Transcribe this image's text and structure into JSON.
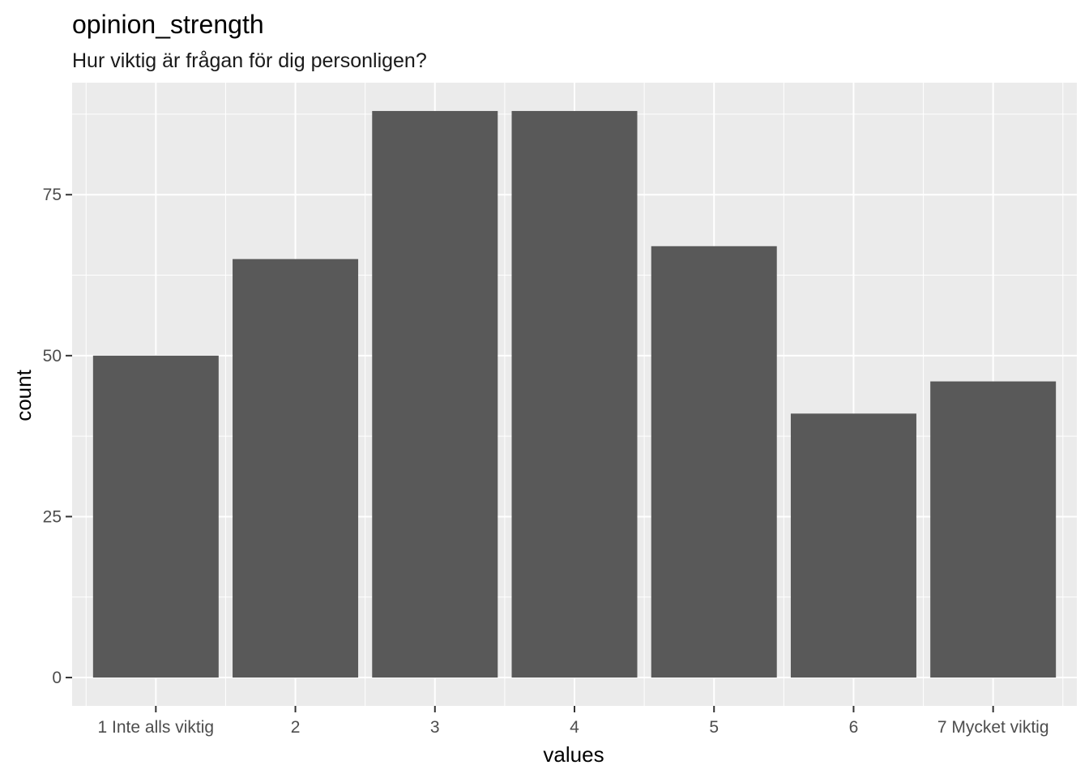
{
  "chart_data": {
    "type": "bar",
    "title": "opinion_strength",
    "subtitle": "Hur viktig är frågan för dig personligen?",
    "xlabel": "values",
    "ylabel": "count",
    "categories": [
      "1 Inte alls viktig",
      "2",
      "3",
      "4",
      "5",
      "6",
      "7 Mycket viktig"
    ],
    "values": [
      50,
      65,
      88,
      88,
      67,
      41,
      46
    ],
    "y_ticks": [
      0,
      25,
      50,
      75
    ],
    "y_tick_labels": [
      "0",
      "25",
      "50",
      "75"
    ],
    "ylim": [
      -4.4,
      92.4
    ],
    "grid": true,
    "legend": "none",
    "colors": {
      "bar": "#595959",
      "panel_background": "#ebebeb",
      "grid_line": "#ffffff",
      "tick_text": "#4d4d4d",
      "tick_mark": "#333333"
    }
  }
}
